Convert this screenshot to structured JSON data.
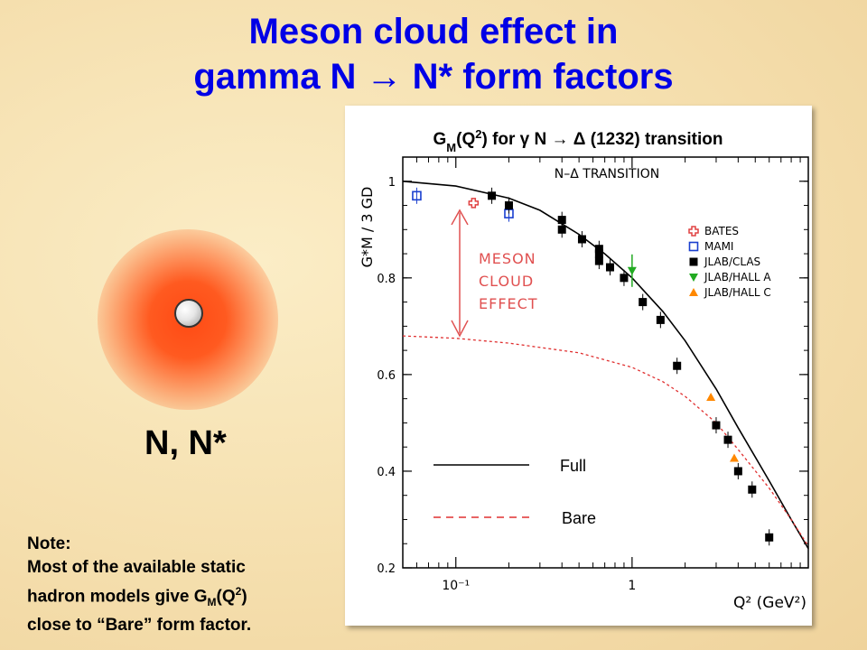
{
  "slide": {
    "title_line1": "Meson cloud effect in",
    "title_line2": "gamma N → N* form factors",
    "particle_label": "N, N*",
    "note": {
      "heading": "Note:",
      "line1": "Most of the available static",
      "line2": "hadron models  give G",
      "line2_sub": "M",
      "line2_rest": "(Q",
      "line2_sup": "2",
      "line2_end": ")",
      "line3": "close to “Bare”  form factor."
    },
    "colors": {
      "title": "#0000e6",
      "glow": "#ff4a14",
      "background": "#f5dfae"
    }
  },
  "chart_data": {
    "type": "scatter",
    "title": "G_M(Q^2) for γ N → Δ (1232) transition",
    "inner_title": "N–Δ TRANSITION",
    "xlabel": "Q² (GeV²)",
    "ylabel": "G*M / 3 GD",
    "xscale": "log",
    "xlim": [
      0.05,
      10
    ],
    "ylim": [
      0.2,
      1.05
    ],
    "x_tick_labels": [
      "10⁻¹",
      "1"
    ],
    "x_ticks": [
      0.1,
      1
    ],
    "y_ticks": [
      0.2,
      0.4,
      0.6,
      0.8,
      1.0
    ],
    "y_tick_labels": [
      "0.2",
      "0.4",
      "0.6",
      "0.8",
      "1"
    ],
    "annotation_lines": [
      "MESON",
      "CLOUD",
      "EFFECT"
    ],
    "annotation_color": "#e05050",
    "series": [
      {
        "name": "BATES",
        "marker": "open-cross",
        "color": "#e04040",
        "points": [
          [
            0.126,
            0.955
          ]
        ]
      },
      {
        "name": "MAMI",
        "marker": "open-square",
        "color": "#1a3fcf",
        "points": [
          [
            0.06,
            0.97
          ],
          [
            0.2,
            0.933
          ]
        ]
      },
      {
        "name": "JLAB/CLAS",
        "marker": "filled-square",
        "color": "#000000",
        "points": [
          [
            0.16,
            0.97
          ],
          [
            0.2,
            0.95
          ],
          [
            0.4,
            0.92
          ],
          [
            0.4,
            0.9
          ],
          [
            0.52,
            0.88
          ],
          [
            0.65,
            0.86
          ],
          [
            0.65,
            0.85
          ],
          [
            0.65,
            0.835
          ],
          [
            0.75,
            0.822
          ],
          [
            0.9,
            0.8
          ],
          [
            1.15,
            0.75
          ],
          [
            1.45,
            0.713
          ],
          [
            1.8,
            0.618
          ],
          [
            3.0,
            0.495
          ],
          [
            3.5,
            0.465
          ],
          [
            4.0,
            0.4
          ],
          [
            4.8,
            0.362
          ],
          [
            6.0,
            0.263
          ]
        ]
      },
      {
        "name": "JLAB/HALL A",
        "marker": "down-triangle",
        "color": "#22aa22",
        "points": [
          [
            1.0,
            0.815
          ]
        ]
      },
      {
        "name": "JLAB/HALL C",
        "marker": "up-triangle",
        "color": "#ff8800",
        "points": [
          [
            2.8,
            0.553
          ],
          [
            3.8,
            0.427
          ]
        ]
      }
    ],
    "curves": [
      {
        "name": "Full",
        "style": "solid",
        "color": "#000000",
        "points": [
          [
            0.05,
            1.0
          ],
          [
            0.1,
            0.99
          ],
          [
            0.2,
            0.965
          ],
          [
            0.3,
            0.94
          ],
          [
            0.5,
            0.89
          ],
          [
            0.7,
            0.85
          ],
          [
            1.0,
            0.8
          ],
          [
            1.5,
            0.73
          ],
          [
            2.0,
            0.67
          ],
          [
            3.0,
            0.57
          ],
          [
            4.0,
            0.49
          ],
          [
            6.0,
            0.38
          ],
          [
            8.0,
            0.3
          ],
          [
            10.0,
            0.24
          ]
        ]
      },
      {
        "name": "Bare",
        "style": "dashed",
        "color": "#e03030",
        "points": [
          [
            0.05,
            0.68
          ],
          [
            0.1,
            0.675
          ],
          [
            0.2,
            0.665
          ],
          [
            0.5,
            0.645
          ],
          [
            1.0,
            0.615
          ],
          [
            1.5,
            0.585
          ],
          [
            2.0,
            0.555
          ],
          [
            3.0,
            0.5
          ],
          [
            4.0,
            0.445
          ],
          [
            6.0,
            0.365
          ],
          [
            8.0,
            0.3
          ],
          [
            10.0,
            0.245
          ]
        ]
      }
    ],
    "legend_placement": "right"
  }
}
